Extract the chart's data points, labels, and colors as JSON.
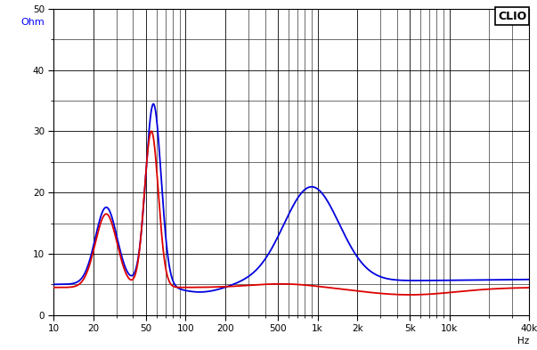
{
  "clio_label": "CLIO",
  "ylabel": "Ohm",
  "xlabel_right": "Hz",
  "xmin": 10,
  "xmax": 40000,
  "ymin": 0,
  "ymax": 50,
  "yticks": [
    0,
    10,
    20,
    30,
    40,
    50
  ],
  "ytick_labels": [
    "0",
    "10",
    "20",
    "30",
    "40",
    "50"
  ],
  "xtick_positions": [
    10,
    20,
    50,
    100,
    200,
    500,
    1000,
    2000,
    5000,
    10000,
    40000
  ],
  "xtick_labels": [
    "10",
    "20",
    "50",
    "100",
    "200",
    "500",
    "1k",
    "2k",
    "5k",
    "10k",
    "40k"
  ],
  "background_color": "#ffffff",
  "grid_color": "#000000",
  "blue_color": "#0000dd",
  "red_color": "#dd0000",
  "linewidth": 1.3
}
